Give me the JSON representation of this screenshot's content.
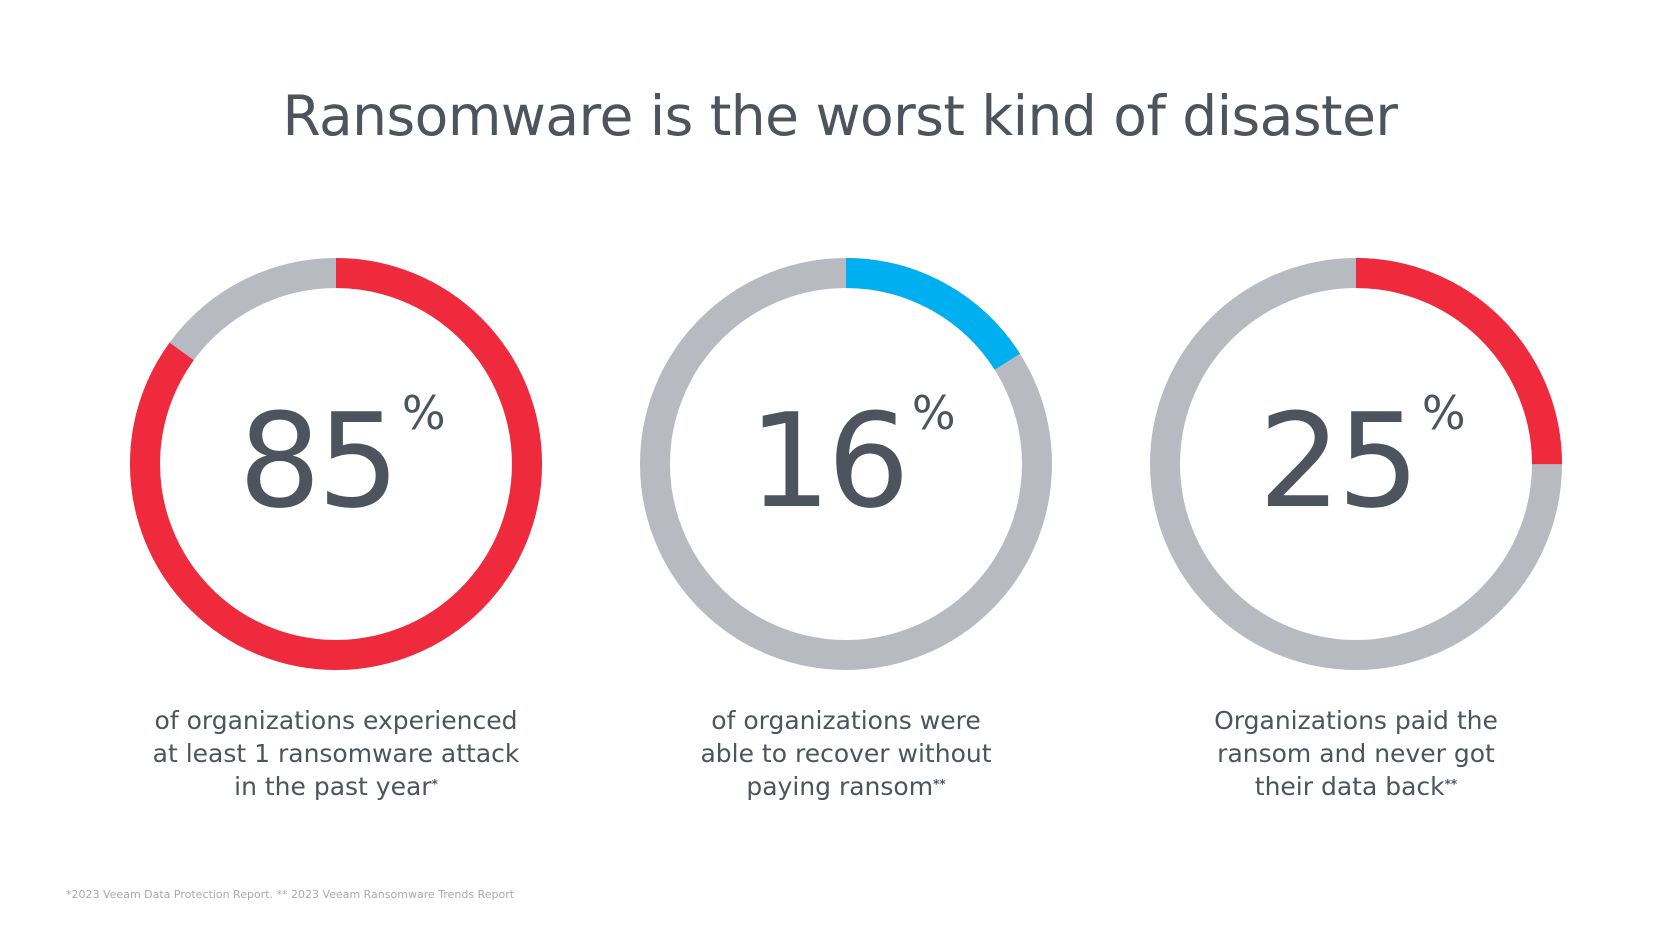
{
  "title": "Ransomware is the worst kind of disaster",
  "chart_data": [
    {
      "type": "pie",
      "value": 85,
      "unit": "%",
      "color": "#ee2a3c",
      "track_color": "#b7bbc1",
      "caption_lines": [
        "of organizations experienced",
        "at least 1 ransomware attack",
        "in the past year"
      ],
      "caption_mark": "*"
    },
    {
      "type": "pie",
      "value": 16,
      "unit": "%",
      "color": "#00aff0",
      "track_color": "#b7bbc1",
      "caption_lines": [
        "of organizations were",
        "able to recover without",
        "paying ransom"
      ],
      "caption_mark": "**"
    },
    {
      "type": "pie",
      "value": 25,
      "unit": "%",
      "color": "#ee2a3c",
      "track_color": "#b7bbc1",
      "caption_lines": [
        "Organizations paid the",
        "ransom and never got",
        "their data back"
      ],
      "caption_mark": "**"
    }
  ],
  "footnote": "*2023 Veeam Data Protection Report. ** 2023 Veeam Ransomware Trends Report"
}
